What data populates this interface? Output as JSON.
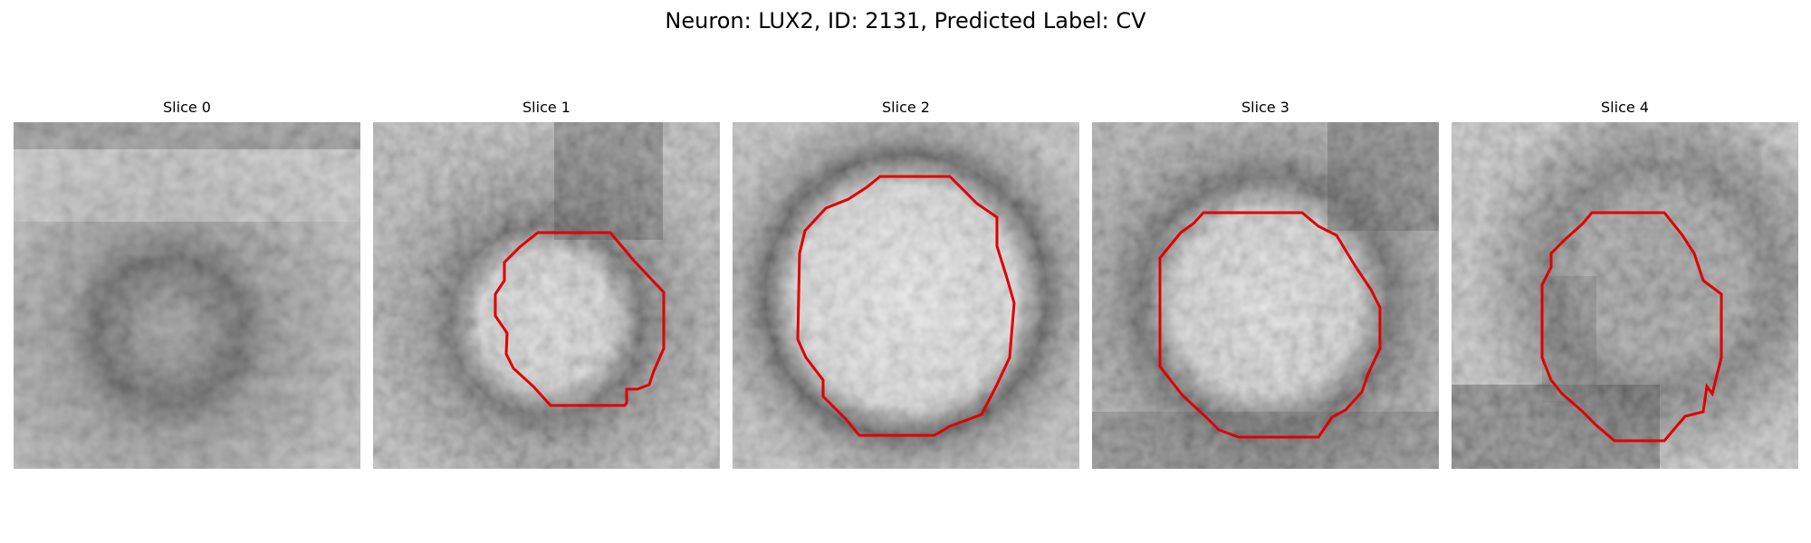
{
  "figure": {
    "title": "Neuron: LUX2, ID: 2131, Predicted Label: CV"
  },
  "contour_color": "#e00000",
  "panels": [
    {
      "title": "Slice 0",
      "has_contour": false,
      "contrast": "low-contrast grayscale patch with faint dark ring"
    },
    {
      "title": "Slice 1",
      "has_contour": true
    },
    {
      "title": "Slice 2",
      "has_contour": true
    },
    {
      "title": "Slice 3",
      "has_contour": true
    },
    {
      "title": "Slice 4",
      "has_contour": true
    }
  ]
}
